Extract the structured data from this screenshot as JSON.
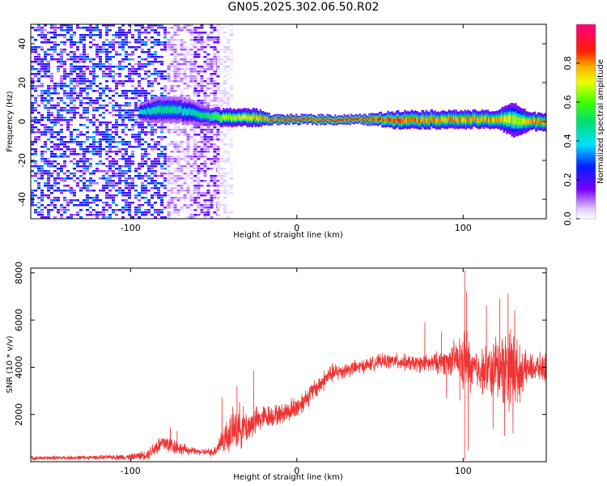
{
  "title": "GN05.2025.302.06.50.R02",
  "colors": {
    "signal": "#ef3434",
    "frame": "#000000"
  },
  "chart_data": [
    {
      "type": "heatmap",
      "title": "GN05.2025.302.06.50.R02",
      "xlabel": "Height of straight line (km)",
      "ylabel": "Frequency (Hz)",
      "xlim": [
        -160,
        150
      ],
      "ylim": [
        -50,
        50
      ],
      "xticks": [
        -100,
        0,
        100
      ],
      "xtick_labels": [
        "-100",
        "0",
        "100"
      ],
      "yticks": [
        -40,
        -20,
        0,
        20,
        40
      ],
      "ytick_labels": [
        "-40",
        "-20",
        "0",
        "20",
        "40"
      ],
      "colorbar": {
        "label": "Normalized spectral amplitude",
        "range": [
          0,
          1
        ],
        "ticks": [
          0,
          0.2,
          0.4,
          0.6,
          0.8
        ],
        "tick_labels": [
          "0.0",
          "0.2",
          "0.4",
          "0.6",
          "0.8"
        ],
        "colormap": "rainbow (white-violet-blue-cyan-green-yellow-red-magenta)"
      },
      "ridge": {
        "description": "narrow high-amplitude band of the carrier frequency",
        "x": [
          -95,
          -85,
          -75,
          -65,
          -55,
          -45,
          -35,
          -25,
          -15,
          0,
          20,
          40,
          60,
          80,
          100,
          120,
          130,
          135,
          140,
          150
        ],
        "frequency": [
          5,
          6,
          6,
          5,
          3,
          2,
          2,
          2,
          1,
          1,
          1,
          1,
          1,
          1,
          1,
          1,
          1,
          0,
          0,
          0
        ],
        "amplitude": [
          0.45,
          0.5,
          0.5,
          0.45,
          0.55,
          0.7,
          0.75,
          0.8,
          0.9,
          0.95,
          0.95,
          0.95,
          0.9,
          0.85,
          0.85,
          0.85,
          0.7,
          0.75,
          0.85,
          0.85
        ],
        "half_width_hz": [
          2,
          3,
          3,
          3,
          2,
          2,
          2,
          2,
          1,
          1,
          1,
          1,
          2,
          2,
          2,
          2,
          4,
          3,
          2,
          2
        ]
      },
      "noise_regions": [
        {
          "x": [
            -160,
            -80
          ],
          "level": 0.25
        },
        {
          "x": [
            -78,
            -62
          ],
          "level": 0.08
        },
        {
          "x": [
            -62,
            -48
          ],
          "level": 0.15
        },
        {
          "x": [
            -48,
            -40
          ],
          "level": 0.04
        }
      ]
    },
    {
      "type": "line",
      "xlabel": "Height of straight line (km)",
      "ylabel": "SNR (10 * v/v)",
      "xlim": [
        -160,
        150
      ],
      "ylim": [
        0,
        8200
      ],
      "xticks": [
        -100,
        0,
        100
      ],
      "xtick_labels": [
        "-100",
        "0",
        "100"
      ],
      "yticks": [
        2000,
        4000,
        6000,
        8000
      ],
      "ytick_labels": [
        "2000",
        "4000",
        "6000",
        "8000"
      ],
      "color": "#ef3434",
      "envelope": {
        "description": "noisy SNR trace: mean with jitter amplitude",
        "x": [
          -160,
          -120,
          -100,
          -90,
          -85,
          -80,
          -75,
          -70,
          -60,
          -50,
          -45,
          -40,
          -35,
          -30,
          -25,
          -20,
          -10,
          0,
          10,
          20,
          30,
          40,
          50,
          60,
          70,
          80,
          90,
          95,
          100,
          102,
          105,
          110,
          115,
          120,
          125,
          130,
          133,
          137,
          140,
          150
        ],
        "mean": [
          150,
          180,
          200,
          300,
          600,
          800,
          700,
          550,
          420,
          400,
          900,
          1200,
          1500,
          1450,
          1700,
          1900,
          2000,
          2300,
          3000,
          3700,
          3900,
          4050,
          4250,
          4250,
          4150,
          4150,
          4250,
          4350,
          4200,
          4200,
          3900,
          3900,
          3800,
          3950,
          4050,
          4000,
          3700,
          3900,
          3950,
          4000
        ],
        "jitter": [
          100,
          100,
          150,
          250,
          450,
          500,
          450,
          300,
          150,
          200,
          650,
          1000,
          1150,
          900,
          700,
          600,
          500,
          600,
          500,
          500,
          400,
          350,
          350,
          400,
          400,
          450,
          650,
          900,
          1500,
          1800,
          1100,
          1100,
          1300,
          1700,
          1900,
          2200,
          1500,
          900,
          700,
          700
        ]
      },
      "spikes": [
        {
          "x": -76,
          "y": 1450
        },
        {
          "x": -72,
          "y": 1300
        },
        {
          "x": -45,
          "y": 2700
        },
        {
          "x": -36,
          "y": 3200
        },
        {
          "x": -26,
          "y": 3850
        },
        {
          "x": 77,
          "y": 5900
        },
        {
          "x": 87,
          "y": 5500
        },
        {
          "x": 101,
          "y": 8100
        },
        {
          "x": 102,
          "y": 7200
        },
        {
          "x": 101,
          "y": 80
        },
        {
          "x": 103,
          "y": 500
        },
        {
          "x": 114,
          "y": 6600
        },
        {
          "x": 127,
          "y": 7100
        },
        {
          "x": 122,
          "y": 6900
        },
        {
          "x": 131,
          "y": 6400
        },
        {
          "x": 90,
          "y": 2700
        },
        {
          "x": 98,
          "y": 2600
        },
        {
          "x": 125,
          "y": 1100
        },
        {
          "x": 130,
          "y": 1200
        },
        {
          "x": 118,
          "y": 1400
        }
      ]
    }
  ]
}
